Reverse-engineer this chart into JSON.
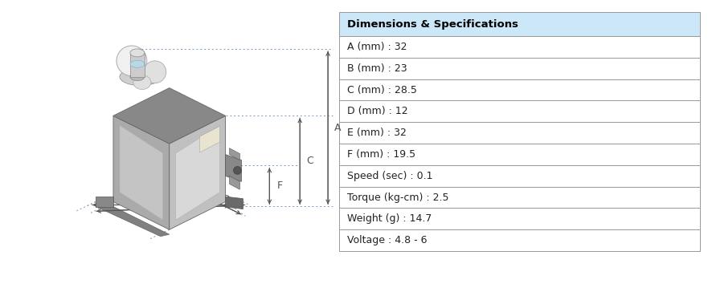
{
  "table_header": "Dimensions & Specifications",
  "table_rows": [
    "A (mm) : 32",
    "B (mm) : 23",
    "C (mm) : 28.5",
    "D (mm) : 12",
    "E (mm) : 32",
    "F (mm) : 19.5",
    "Speed (sec) : 0.1",
    "Torque (kg-cm) : 2.5",
    "Weight (g) : 14.7",
    "Voltage : 4.8 - 6"
  ],
  "header_bg": "#cce8f8",
  "row_bg": "#ffffff",
  "border_color": "#999999",
  "text_color": "#222222",
  "header_text_color": "#000000",
  "bg": "#ffffff",
  "dotted_color": "#7799bb",
  "arrow_color": "#555555",
  "label_color": "#444444",
  "label_fontsize": 9,
  "body_dark": "#7a7a7a",
  "body_mid": "#aaaaaa",
  "body_light": "#cccccc",
  "body_face": "#c0c0c0",
  "body_top": "#888888",
  "panel_face": "#d8d8d8",
  "panel_left": "#c4c4c4",
  "horn_white": "#f0f0f0",
  "horn_mid": "#e0e0e0",
  "mount_gray": "#909090",
  "tab_dark": "#888888",
  "tab_side": "#6a6a6a",
  "connector_gray": "#888888",
  "wire_gray": "#777777"
}
